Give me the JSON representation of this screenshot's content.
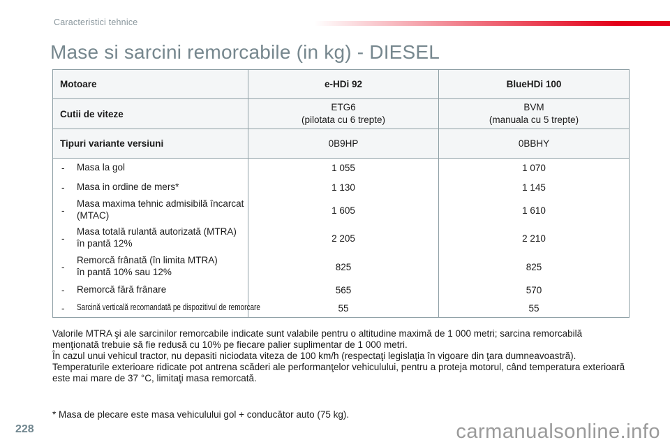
{
  "page": {
    "breadcrumb": "Caracteristici tehnice",
    "title": "Mase si sarcini remorcabile (in kg) - DIESEL",
    "page_number": "228",
    "watermark": "carmanualsonline.info",
    "accent_color": "#e30019",
    "heading_color": "#76878e"
  },
  "table": {
    "dash": "-",
    "header_rows": [
      {
        "label": "Motoare",
        "v1": "e-HDi 92",
        "v2": "BlueHDi 100"
      },
      {
        "label": "Cutii de viteze",
        "v1": "ETG6\n(pilotata cu 6 trepte)",
        "v2": "BVM\n(manuala cu 5 trepte)"
      },
      {
        "label": "Tipuri variante versiuni",
        "v1": "0B9HP",
        "v2": "0BBHY"
      }
    ],
    "rows": [
      {
        "label": "Masa la gol",
        "v1": "1 055",
        "v2": "1 070"
      },
      {
        "label": "Masa in ordine de mers*",
        "v1": "1 130",
        "v2": "1 145"
      },
      {
        "label": "Masa maxima tehnic admisibilă încarcat\n(MTAC)",
        "v1": "1 605",
        "v2": "1 610"
      },
      {
        "label": "Masa totală rulantă autorizată (MTRA)\nîn pantă 12%",
        "v1": "2 205",
        "v2": "2 210"
      },
      {
        "label": "Remorcă frânată (în limita MTRA)\nîn pantă 10% sau 12%",
        "v1": "825",
        "v2": "825"
      },
      {
        "label": "Remorcă fără frânare",
        "v1": "565",
        "v2": "570"
      },
      {
        "label": "Sarcină verticală recomandată pe dispozitivul de remorcare",
        "v1": "55",
        "v2": "55"
      }
    ]
  },
  "notes": {
    "p1": "Valorile MTRA şi ale sarcinilor remorcabile indicate sunt valabile pentru o altitudine maximă de 1 000 metri; sarcina remorcabilă menţionată trebuie să fie redusă cu 10% pe fiecare palier suplimentar de 1 000 metri.",
    "p2": "În cazul unui vehicul tractor, nu depasiti niciodata viteza de 100 km/h (respectaţi legislaţia în vigoare din ţara dumneavoastră).",
    "p3": "Temperaturile exterioare ridicate pot antrena scăderi ale performanţelor vehiculului, pentru a proteja motorul, când temperatura exterioară este mai mare de 37 °C, limitaţi masa remorcată."
  },
  "footnote": {
    "text": "* Masa de plecare este masa vehiculului gol + conducător auto (75 kg)."
  }
}
